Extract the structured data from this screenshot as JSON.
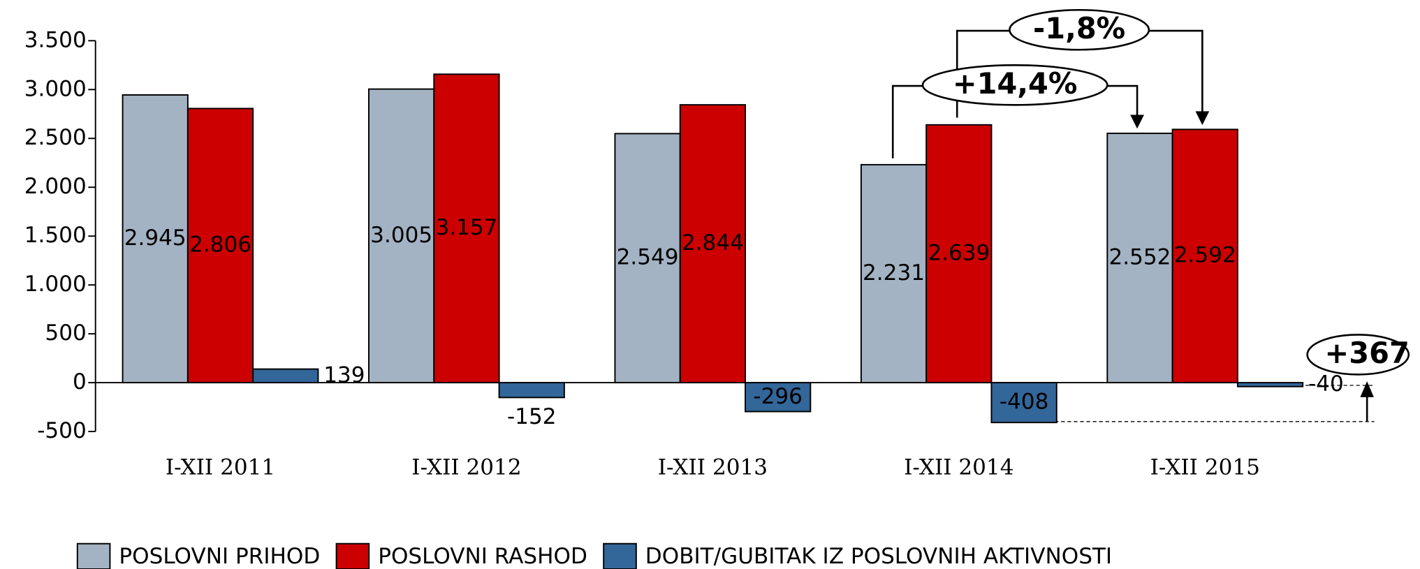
{
  "chart_data": {
    "type": "bar",
    "categories": [
      "I-XII 2011",
      "I-XII 2012",
      "I-XII 2013",
      "I-XII 2014",
      "I-XII 2015"
    ],
    "series": [
      {
        "name": "POSLOVNI PRIHOD",
        "color": "#a3b3c3",
        "values": [
          2945,
          3005,
          2549,
          2231,
          2552
        ],
        "value_labels": [
          "2.945",
          "3.005",
          "2.549",
          "2.231",
          "2.552"
        ]
      },
      {
        "name": "POSLOVNI RASHOD",
        "color": "#cc0000",
        "values": [
          2806,
          3157,
          2844,
          2639,
          2592
        ],
        "value_labels": [
          "2.806",
          "3.157",
          "2.844",
          "2.639",
          "2.592"
        ]
      },
      {
        "name": "DOBIT/GUBITAK IZ POSLOVNIH AKTIVNOSTI",
        "color": "#336699",
        "values": [
          139,
          -152,
          -296,
          -408,
          -40
        ]
      }
    ],
    "ylim": [
      -500,
      3500
    ],
    "yticks": [
      -500,
      0,
      500,
      {
        "value": 1000,
        "label": "1.000"
      },
      {
        "value": 1500,
        "label": "1.500"
      },
      {
        "value": 2000,
        "label": "2.000"
      },
      {
        "value": 2500,
        "label": "2.500"
      },
      {
        "value": 3000,
        "label": "3.000"
      },
      {
        "value": 3500,
        "label": "3.500"
      }
    ],
    "annotations": [
      "-1,8%",
      "+14,4%",
      "+367"
    ]
  }
}
